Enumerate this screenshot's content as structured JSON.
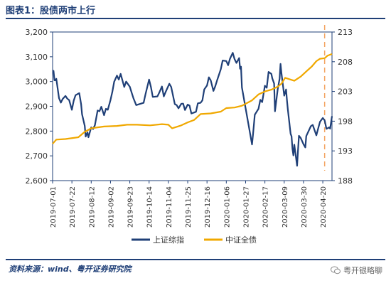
{
  "title": "图表1：股债两市上行",
  "source": "资料来源：wind、粤开证券研究院",
  "watermark": "粤开银略聊",
  "colors": {
    "stock": "#1f3f77",
    "bond": "#f0a800",
    "marker": "#f4a460",
    "frame": "#1f3f77"
  },
  "chart_data": {
    "type": "line",
    "x_tick_labels": [
      "2019-07-01",
      "2019-07-22",
      "2019-08-12",
      "2019-09-02",
      "2019-09-23",
      "2019-10-14",
      "2019-11-04",
      "2019-11-25",
      "2019-12-16",
      "2020-01-06",
      "2020-01-27",
      "2020-02-17",
      "2020-03-09",
      "2020-03-30",
      "2020-04-20"
    ],
    "y_left": {
      "ticks": [
        "2,600",
        "2,700",
        "2,800",
        "2,900",
        "3,000",
        "3,100",
        "3,200"
      ],
      "range": [
        2600,
        3200
      ]
    },
    "y_right": {
      "ticks": [
        "188",
        "193",
        "198",
        "203",
        "208",
        "213"
      ],
      "range": [
        188,
        213
      ]
    },
    "legend_position": "bottom",
    "vertical_marker_date": "2020-04-22",
    "series": [
      {
        "name": "上证综指",
        "axis": "left",
        "points": [
          [
            "2019-07-01",
            3044
          ],
          [
            "2019-07-02",
            3043
          ],
          [
            "2019-07-03",
            3005
          ],
          [
            "2019-07-04",
            3005
          ],
          [
            "2019-07-05",
            3011
          ],
          [
            "2019-07-08",
            2933
          ],
          [
            "2019-07-10",
            2915
          ],
          [
            "2019-07-12",
            2930
          ],
          [
            "2019-07-15",
            2942
          ],
          [
            "2019-07-17",
            2931
          ],
          [
            "2019-07-19",
            2925
          ],
          [
            "2019-07-22",
            2886
          ],
          [
            "2019-07-24",
            2923
          ],
          [
            "2019-07-26",
            2945
          ],
          [
            "2019-07-30",
            2953
          ],
          [
            "2019-08-01",
            2909
          ],
          [
            "2019-08-02",
            2868
          ],
          [
            "2019-08-05",
            2821
          ],
          [
            "2019-08-06",
            2778
          ],
          [
            "2019-08-08",
            2795
          ],
          [
            "2019-08-09",
            2775
          ],
          [
            "2019-08-12",
            2815
          ],
          [
            "2019-08-14",
            2808
          ],
          [
            "2019-08-16",
            2824
          ],
          [
            "2019-08-19",
            2883
          ],
          [
            "2019-08-21",
            2880
          ],
          [
            "2019-08-23",
            2898
          ],
          [
            "2019-08-26",
            2864
          ],
          [
            "2019-08-28",
            2890
          ],
          [
            "2019-08-30",
            2886
          ],
          [
            "2019-09-02",
            2925
          ],
          [
            "2019-09-04",
            2958
          ],
          [
            "2019-09-06",
            2999
          ],
          [
            "2019-09-09",
            3024
          ],
          [
            "2019-09-11",
            3008
          ],
          [
            "2019-09-13",
            3031
          ],
          [
            "2019-09-17",
            2978
          ],
          [
            "2019-09-19",
            3000
          ],
          [
            "2019-09-23",
            2979
          ],
          [
            "2019-09-25",
            2955
          ],
          [
            "2019-09-27",
            2932
          ],
          [
            "2019-09-30",
            2905
          ],
          [
            "2019-10-08",
            2914
          ],
          [
            "2019-10-10",
            2948
          ],
          [
            "2019-10-14",
            3008
          ],
          [
            "2019-10-16",
            2978
          ],
          [
            "2019-10-18",
            2938
          ],
          [
            "2019-10-21",
            2939
          ],
          [
            "2019-10-23",
            2940
          ],
          [
            "2019-10-25",
            2955
          ],
          [
            "2019-10-28",
            2980
          ],
          [
            "2019-10-30",
            2940
          ],
          [
            "2019-11-01",
            2958
          ],
          [
            "2019-11-05",
            2991
          ],
          [
            "2019-11-07",
            2978
          ],
          [
            "2019-11-11",
            2909
          ],
          [
            "2019-11-13",
            2905
          ],
          [
            "2019-11-15",
            2892
          ],
          [
            "2019-11-18",
            2910
          ],
          [
            "2019-11-20",
            2911
          ],
          [
            "2019-11-22",
            2885
          ],
          [
            "2019-11-25",
            2907
          ],
          [
            "2019-11-27",
            2903
          ],
          [
            "2019-11-29",
            2871
          ],
          [
            "2019-12-02",
            2875
          ],
          [
            "2019-12-04",
            2878
          ],
          [
            "2019-12-06",
            2912
          ],
          [
            "2019-12-09",
            2914
          ],
          [
            "2019-12-11",
            2924
          ],
          [
            "2019-12-13",
            2968
          ],
          [
            "2019-12-16",
            2984
          ],
          [
            "2019-12-18",
            3017
          ],
          [
            "2019-12-20",
            3005
          ],
          [
            "2019-12-23",
            2962
          ],
          [
            "2019-12-25",
            2981
          ],
          [
            "2019-12-27",
            3005
          ],
          [
            "2019-12-31",
            3050
          ],
          [
            "2020-01-02",
            3085
          ],
          [
            "2020-01-06",
            3083
          ],
          [
            "2020-01-08",
            3066
          ],
          [
            "2020-01-10",
            3092
          ],
          [
            "2020-01-13",
            3116
          ],
          [
            "2020-01-15",
            3090
          ],
          [
            "2020-01-17",
            3075
          ],
          [
            "2020-01-20",
            3095
          ],
          [
            "2020-01-21",
            3052
          ],
          [
            "2020-01-22",
            3060
          ],
          [
            "2020-01-23",
            2976
          ],
          [
            "2020-02-03",
            2746
          ],
          [
            "2020-02-04",
            2783
          ],
          [
            "2020-02-06",
            2866
          ],
          [
            "2020-02-10",
            2890
          ],
          [
            "2020-02-12",
            2926
          ],
          [
            "2020-02-14",
            2917
          ],
          [
            "2020-02-17",
            2983
          ],
          [
            "2020-02-19",
            2975
          ],
          [
            "2020-02-21",
            3039
          ],
          [
            "2020-02-24",
            3031
          ],
          [
            "2020-02-25",
            3013
          ],
          [
            "2020-02-27",
            2992
          ],
          [
            "2020-02-28",
            2880
          ],
          [
            "2020-03-02",
            2970
          ],
          [
            "2020-03-04",
            3011
          ],
          [
            "2020-03-05",
            3071
          ],
          [
            "2020-03-06",
            3034
          ],
          [
            "2020-03-09",
            2943
          ],
          [
            "2020-03-11",
            2968
          ],
          [
            "2020-03-12",
            2923
          ],
          [
            "2020-03-13",
            2887
          ],
          [
            "2020-03-16",
            2789
          ],
          [
            "2020-03-17",
            2779
          ],
          [
            "2020-03-18",
            2728
          ],
          [
            "2020-03-19",
            2702
          ],
          [
            "2020-03-20",
            2745
          ],
          [
            "2020-03-23",
            2660
          ],
          [
            "2020-03-24",
            2722
          ],
          [
            "2020-03-25",
            2781
          ],
          [
            "2020-03-27",
            2772
          ],
          [
            "2020-03-30",
            2747
          ],
          [
            "2020-04-01",
            2734
          ],
          [
            "2020-04-02",
            2780
          ],
          [
            "2020-04-07",
            2820
          ],
          [
            "2020-04-09",
            2825
          ],
          [
            "2020-04-13",
            2783
          ],
          [
            "2020-04-15",
            2811
          ],
          [
            "2020-04-17",
            2838
          ],
          [
            "2020-04-20",
            2853
          ],
          [
            "2020-04-22",
            2843
          ],
          [
            "2020-04-24",
            2809
          ],
          [
            "2020-04-27",
            2815
          ],
          [
            "2020-04-28",
            2810
          ],
          [
            "2020-04-30",
            2860
          ]
        ]
      },
      {
        "name": "中证全债",
        "axis": "right",
        "points": [
          [
            "2019-07-01",
            194.2
          ],
          [
            "2019-07-05",
            194.9
          ],
          [
            "2019-07-15",
            195.0
          ],
          [
            "2019-07-29",
            195.3
          ],
          [
            "2019-08-05",
            196.2
          ],
          [
            "2019-08-12",
            196.8
          ],
          [
            "2019-08-26",
            197.1
          ],
          [
            "2019-09-09",
            197.2
          ],
          [
            "2019-09-20",
            197.4
          ],
          [
            "2019-10-01",
            197.4
          ],
          [
            "2019-10-15",
            197.3
          ],
          [
            "2019-10-28",
            197.5
          ],
          [
            "2019-11-04",
            197.4
          ],
          [
            "2019-11-08",
            196.8
          ],
          [
            "2019-11-18",
            197.3
          ],
          [
            "2019-11-25",
            197.8
          ],
          [
            "2019-12-02",
            198.2
          ],
          [
            "2019-12-09",
            199.2
          ],
          [
            "2019-12-20",
            199.3
          ],
          [
            "2019-12-31",
            199.6
          ],
          [
            "2020-01-06",
            200.2
          ],
          [
            "2020-01-15",
            200.3
          ],
          [
            "2020-01-23",
            200.6
          ],
          [
            "2020-02-03",
            201.5
          ],
          [
            "2020-02-10",
            202.5
          ],
          [
            "2020-02-17",
            203.0
          ],
          [
            "2020-02-24",
            203.3
          ],
          [
            "2020-03-02",
            203.8
          ],
          [
            "2020-03-06",
            204.3
          ],
          [
            "2020-03-10",
            205.3
          ],
          [
            "2020-03-16",
            205.0
          ],
          [
            "2020-03-20",
            204.8
          ],
          [
            "2020-03-27",
            205.5
          ],
          [
            "2020-04-03",
            206.5
          ],
          [
            "2020-04-08",
            207.2
          ],
          [
            "2020-04-13",
            208.1
          ],
          [
            "2020-04-17",
            208.5
          ],
          [
            "2020-04-22",
            208.6
          ],
          [
            "2020-04-25",
            209.0
          ],
          [
            "2020-04-30",
            209.3
          ]
        ]
      }
    ]
  }
}
